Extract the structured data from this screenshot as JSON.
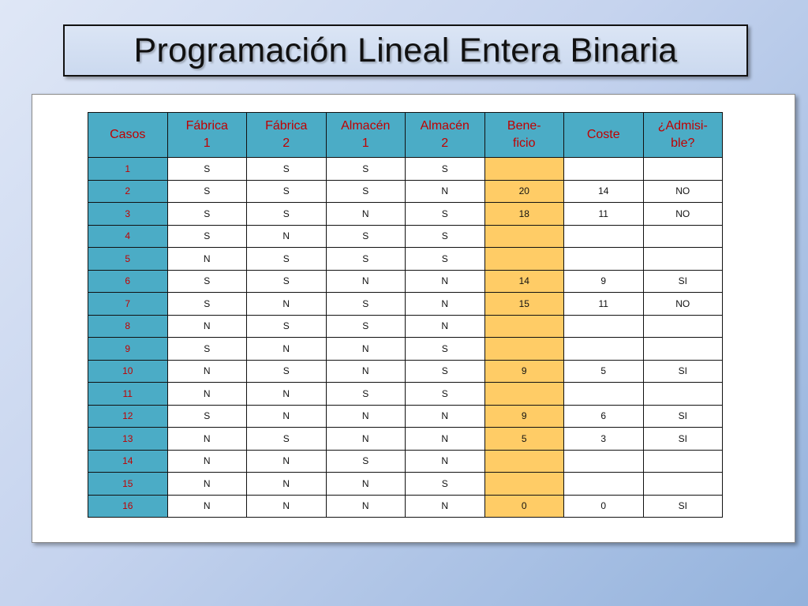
{
  "slide": {
    "title": "Programación Lineal Entera Binaria"
  },
  "table": {
    "headers": [
      "Casos",
      "Fábrica\n1",
      "Fábrica\n2",
      "Almacén\n1",
      "Almacén\n2",
      "Bene-\nficio",
      "Coste",
      "¿Admisi-\nble?"
    ],
    "rows": [
      [
        "1",
        "S",
        "S",
        "S",
        "S",
        "",
        "",
        ""
      ],
      [
        "2",
        "S",
        "S",
        "S",
        "N",
        "20",
        "14",
        "NO"
      ],
      [
        "3",
        "S",
        "S",
        "N",
        "S",
        "18",
        "11",
        "NO"
      ],
      [
        "4",
        "S",
        "N",
        "S",
        "S",
        "",
        "",
        ""
      ],
      [
        "5",
        "N",
        "S",
        "S",
        "S",
        "",
        "",
        ""
      ],
      [
        "6",
        "S",
        "S",
        "N",
        "N",
        "14",
        "9",
        "SI"
      ],
      [
        "7",
        "S",
        "N",
        "S",
        "N",
        "15",
        "11",
        "NO"
      ],
      [
        "8",
        "N",
        "S",
        "S",
        "N",
        "",
        "",
        ""
      ],
      [
        "9",
        "S",
        "N",
        "N",
        "S",
        "",
        "",
        ""
      ],
      [
        "10",
        "N",
        "S",
        "N",
        "S",
        "9",
        "5",
        "SI"
      ],
      [
        "11",
        "N",
        "N",
        "S",
        "S",
        "",
        "",
        ""
      ],
      [
        "12",
        "S",
        "N",
        "N",
        "N",
        "9",
        "6",
        "SI"
      ],
      [
        "13",
        "N",
        "S",
        "N",
        "N",
        "5",
        "3",
        "SI"
      ],
      [
        "14",
        "N",
        "N",
        "S",
        "N",
        "",
        "",
        ""
      ],
      [
        "15",
        "N",
        "N",
        "N",
        "S",
        "",
        "",
        ""
      ],
      [
        "16",
        "N",
        "N",
        "N",
        "N",
        "0",
        "0",
        "SI"
      ]
    ]
  },
  "colors": {
    "header_bg": "#4bacc6",
    "header_text": "#c00000",
    "benefit_bg": "#ffcc66"
  }
}
